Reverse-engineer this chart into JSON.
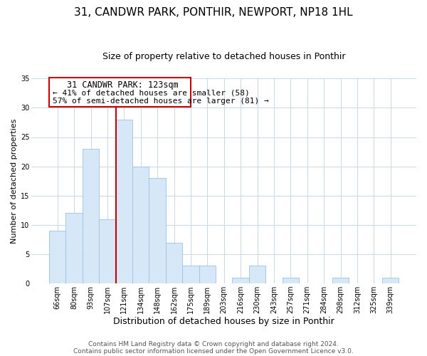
{
  "title": "31, CANDWR PARK, PONTHIR, NEWPORT, NP18 1HL",
  "subtitle": "Size of property relative to detached houses in Ponthir",
  "xlabel": "Distribution of detached houses by size in Ponthir",
  "ylabel": "Number of detached properties",
  "bin_labels": [
    "66sqm",
    "80sqm",
    "93sqm",
    "107sqm",
    "121sqm",
    "134sqm",
    "148sqm",
    "162sqm",
    "175sqm",
    "189sqm",
    "203sqm",
    "216sqm",
    "230sqm",
    "243sqm",
    "257sqm",
    "271sqm",
    "284sqm",
    "298sqm",
    "312sqm",
    "325sqm",
    "339sqm"
  ],
  "bar_heights": [
    9,
    12,
    23,
    11,
    28,
    20,
    18,
    7,
    3,
    3,
    0,
    1,
    3,
    0,
    1,
    0,
    0,
    1,
    0,
    0,
    1
  ],
  "highlight_bin_index": 4,
  "normal_bar_color": "#d6e8f7",
  "bar_edge_color": "#a0c0e0",
  "highlight_line_color": "#cc0000",
  "ylim": [
    0,
    35
  ],
  "yticks": [
    0,
    5,
    10,
    15,
    20,
    25,
    30,
    35
  ],
  "annotation_title": "31 CANDWR PARK: 123sqm",
  "annotation_line1": "← 41% of detached houses are smaller (58)",
  "annotation_line2": "57% of semi-detached houses are larger (81) →",
  "annotation_box_color": "#ffffff",
  "annotation_box_edgecolor": "#cc0000",
  "footer_line1": "Contains HM Land Registry data © Crown copyright and database right 2024.",
  "footer_line2": "Contains public sector information licensed under the Open Government Licence v3.0.",
  "background_color": "#ffffff",
  "grid_color": "#c8d8e8",
  "title_fontsize": 11,
  "subtitle_fontsize": 9,
  "xlabel_fontsize": 9,
  "ylabel_fontsize": 8,
  "tick_fontsize": 7,
  "footer_fontsize": 6.5,
  "annotation_fontsize": 8.5
}
